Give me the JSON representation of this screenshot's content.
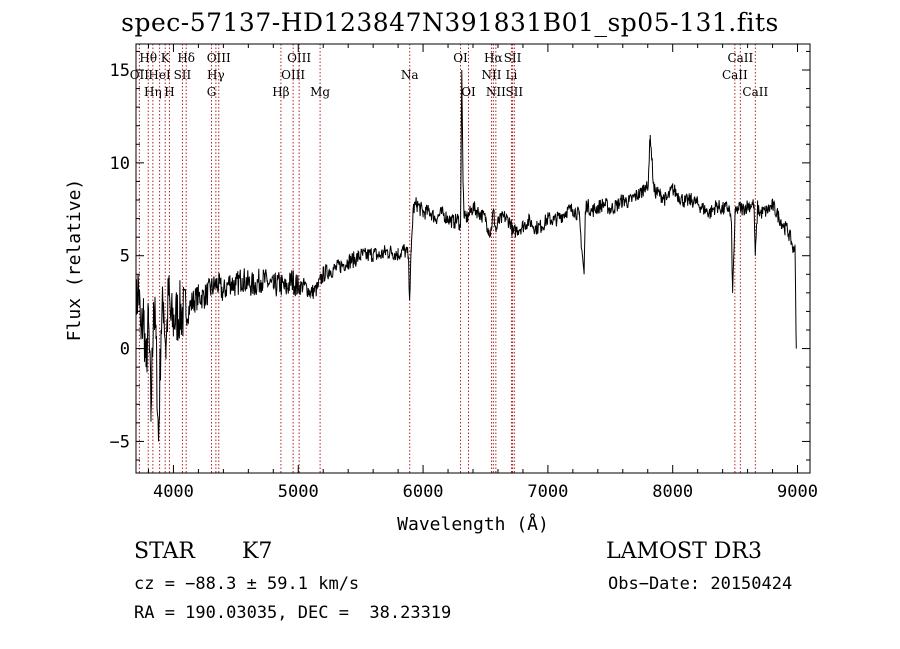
{
  "chart_data": {
    "type": "line",
    "title": "spec-57137-HD123847N391831B01_sp05-131.fits",
    "xlabel": "Wavelength (Å)",
    "ylabel": "Flux (relative)",
    "xlim": [
      3700,
      9100
    ],
    "ylim": [
      -6.7,
      16.4
    ],
    "xticks": [
      4000,
      5000,
      6000,
      7000,
      8000,
      9000
    ],
    "yticks": [
      -5,
      0,
      5,
      10,
      15
    ],
    "series": [
      {
        "name": "flux",
        "x": [
          3700,
          3720,
          3740,
          3760,
          3780,
          3800,
          3820,
          3840,
          3860,
          3880,
          3900,
          3920,
          3940,
          3960,
          3980,
          4000,
          4050,
          4100,
          4150,
          4200,
          4250,
          4300,
          4350,
          4400,
          4450,
          4500,
          4550,
          4600,
          4650,
          4700,
          4750,
          4800,
          4850,
          4900,
          4950,
          5000,
          5050,
          5100,
          5150,
          5200,
          5250,
          5300,
          5350,
          5400,
          5450,
          5500,
          5550,
          5600,
          5650,
          5700,
          5750,
          5800,
          5850,
          5880,
          5893,
          5905,
          5920,
          5950,
          6000,
          6050,
          6100,
          6150,
          6200,
          6250,
          6280,
          6300,
          6310,
          6320,
          6330,
          6360,
          6400,
          6450,
          6500,
          6520,
          6540,
          6563,
          6585,
          6600,
          6650,
          6700,
          6720,
          6750,
          6800,
          6850,
          6900,
          6950,
          7000,
          7050,
          7100,
          7150,
          7200,
          7250,
          7290,
          7300,
          7310,
          7350,
          7400,
          7450,
          7500,
          7550,
          7600,
          7650,
          7700,
          7750,
          7780,
          7800,
          7820,
          7850,
          7900,
          7950,
          8000,
          8050,
          8100,
          8150,
          8200,
          8250,
          8300,
          8350,
          8400,
          8450,
          8470,
          8480,
          8500,
          8520,
          8542,
          8560,
          8600,
          8650,
          8662,
          8680,
          8700,
          8750,
          8800,
          8850,
          8900,
          8920,
          8950,
          8970,
          8980,
          8990
        ],
        "values": [
          2.0,
          3.5,
          0.5,
          2.0,
          -1.0,
          1.5,
          -3.5,
          2.5,
          0.5,
          -5.0,
          1.0,
          2.5,
          0.0,
          3.0,
          1.5,
          1.5,
          2.0,
          1.8,
          2.5,
          2.8,
          2.8,
          3.2,
          3.5,
          3.0,
          3.6,
          3.4,
          3.8,
          3.5,
          3.4,
          3.7,
          3.6,
          3.3,
          3.5,
          3.2,
          3.7,
          3.3,
          3.4,
          3.0,
          3.2,
          4.0,
          4.2,
          4.3,
          4.5,
          4.7,
          4.8,
          5.0,
          5.0,
          5.1,
          5.0,
          5.2,
          5.2,
          5.1,
          5.3,
          5.0,
          2.8,
          5.2,
          7.5,
          7.8,
          7.3,
          7.4,
          7.0,
          7.3,
          7.0,
          6.8,
          7.0,
          6.5,
          15.0,
          9.0,
          7.0,
          7.1,
          7.6,
          7.3,
          7.0,
          6.5,
          6.2,
          7.4,
          6.3,
          6.8,
          7.1,
          6.8,
          6.2,
          6.4,
          6.6,
          6.9,
          6.5,
          6.6,
          7.0,
          6.9,
          7.1,
          7.4,
          7.5,
          7.2,
          4.0,
          7.2,
          7.8,
          7.4,
          7.6,
          7.8,
          7.5,
          7.7,
          8.0,
          7.9,
          8.2,
          8.4,
          8.8,
          8.5,
          11.5,
          8.5,
          8.3,
          8.0,
          8.6,
          8.2,
          7.9,
          8.0,
          7.8,
          7.5,
          7.3,
          7.7,
          7.5,
          7.6,
          6.8,
          3.0,
          7.2,
          7.5,
          7.6,
          7.5,
          7.7,
          7.8,
          5.0,
          7.6,
          7.3,
          7.4,
          7.7,
          7.1,
          6.5,
          6.4,
          5.8,
          5.2,
          5.6,
          0.0
        ]
      }
    ],
    "emission_lines": [
      {
        "label": "Hθ",
        "x": 3798,
        "row": 1
      },
      {
        "label": "K",
        "x": 3934,
        "row": 1
      },
      {
        "label": "Hδ",
        "x": 4102,
        "row": 1
      },
      {
        "label": "OIII",
        "x": 4363,
        "row": 1
      },
      {
        "label": "OIII",
        "x": 5007,
        "row": 1
      },
      {
        "label": "OI",
        "x": 6300,
        "row": 1
      },
      {
        "label": "Hα",
        "x": 6563,
        "row": 1
      },
      {
        "label": "SII",
        "x": 6717,
        "row": 1
      },
      {
        "label": "CaII",
        "x": 8542,
        "row": 1
      },
      {
        "label": "OII",
        "x": 3727,
        "row": 2
      },
      {
        "label": "HeI",
        "x": 3889,
        "row": 2
      },
      {
        "label": "SII",
        "x": 4072,
        "row": 2
      },
      {
        "label": "Hγ",
        "x": 4340,
        "row": 2
      },
      {
        "label": "OIII",
        "x": 4959,
        "row": 2
      },
      {
        "label": "Na",
        "x": 5893,
        "row": 2
      },
      {
        "label": "NII",
        "x": 6548,
        "row": 2
      },
      {
        "label": "Li",
        "x": 6708,
        "row": 2
      },
      {
        "label": "CaII",
        "x": 8498,
        "row": 2
      },
      {
        "label": "Hη",
        "x": 3835,
        "row": 3
      },
      {
        "label": "H",
        "x": 3968,
        "row": 3
      },
      {
        "label": "G",
        "x": 4305,
        "row": 3
      },
      {
        "label": "Hβ",
        "x": 4861,
        "row": 3
      },
      {
        "label": "Mg",
        "x": 5175,
        "row": 3
      },
      {
        "label": "OI",
        "x": 6364,
        "row": 3
      },
      {
        "label": "NII",
        "x": 6583,
        "row": 3
      },
      {
        "label": "SII",
        "x": 6731,
        "row": 3
      },
      {
        "label": "CaII",
        "x": 8662,
        "row": 3
      }
    ]
  },
  "info": {
    "class": "STAR",
    "subclass": "K7",
    "survey": "LAMOST DR3",
    "cz": "cz = −88.3 ± 59.1 km/s",
    "obs_date": "Obs−Date: 20150424",
    "radec": "RA = 190.03035, DEC =  38.23319"
  },
  "colors": {
    "line": "#000000",
    "marker": "#b22222",
    "axis": "#000000"
  }
}
